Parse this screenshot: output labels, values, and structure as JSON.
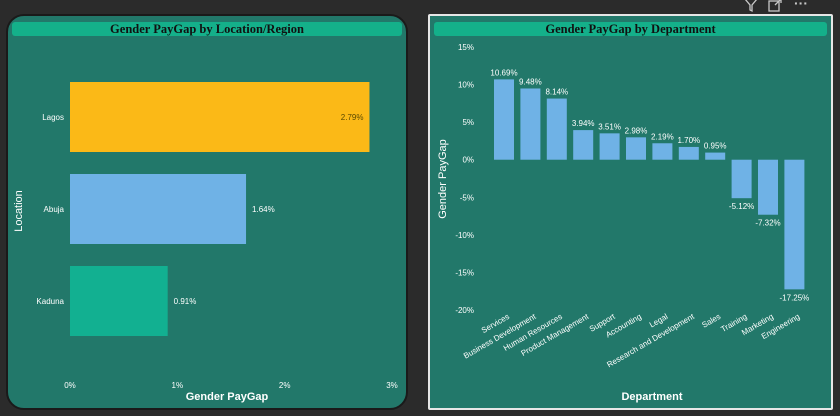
{
  "toolbar": {
    "icons": [
      "filter-icon",
      "focus-mode-icon",
      "more-options-icon"
    ],
    "more_label": "···"
  },
  "colors": {
    "panel": "#22786a",
    "title_bar": "#14b08a",
    "text": "#ffffff",
    "lagos": "#fbb917",
    "abuja": "#6fb2e6",
    "kaduna": "#12b091",
    "dept_bar": "#6fb2e6"
  },
  "chart_data": [
    {
      "type": "bar",
      "orientation": "horizontal",
      "title": "Gender PayGap by Location/Region",
      "xlabel": "Gender PayGap",
      "ylabel": "Location",
      "categories": [
        "Lagos",
        "Abuja",
        "Kaduna"
      ],
      "values": [
        2.79,
        1.64,
        0.91
      ],
      "data_labels": [
        "2.79%",
        "1.64%",
        "0.91%"
      ],
      "xlim": [
        0,
        3
      ],
      "x_ticks": [
        0,
        1,
        2,
        3
      ],
      "x_tick_labels": [
        "0%",
        "1%",
        "2%",
        "3%"
      ],
      "grid": false,
      "legend": "none"
    },
    {
      "type": "bar",
      "orientation": "vertical",
      "title": "Gender PayGap by Department",
      "xlabel": "Department",
      "ylabel": "Gender PayGap",
      "categories": [
        "Services",
        "Business Development",
        "Human Resources",
        "Product Management",
        "Support",
        "Accounting",
        "Legal",
        "Research and Development",
        "Sales",
        "Training",
        "Marketing",
        "Engineering"
      ],
      "values": [
        10.69,
        9.48,
        8.14,
        3.94,
        3.51,
        2.98,
        2.19,
        1.7,
        0.95,
        -5.12,
        -7.32,
        -17.25
      ],
      "data_labels": [
        "10.69%",
        "9.48%",
        "8.14%",
        "3.94%",
        "3.51%",
        "2.98%",
        "2.19%",
        "1.70%",
        "0.95%",
        "-5.12%",
        "-7.32%",
        "-17.25%"
      ],
      "ylim": [
        -20,
        15
      ],
      "y_ticks": [
        15,
        10,
        5,
        0,
        -5,
        -10,
        -15,
        -20
      ],
      "y_tick_labels": [
        "15%",
        "10%",
        "5%",
        "0%",
        "-5%",
        "-10%",
        "-15%",
        "-20%"
      ],
      "grid": false,
      "legend": "none"
    }
  ]
}
